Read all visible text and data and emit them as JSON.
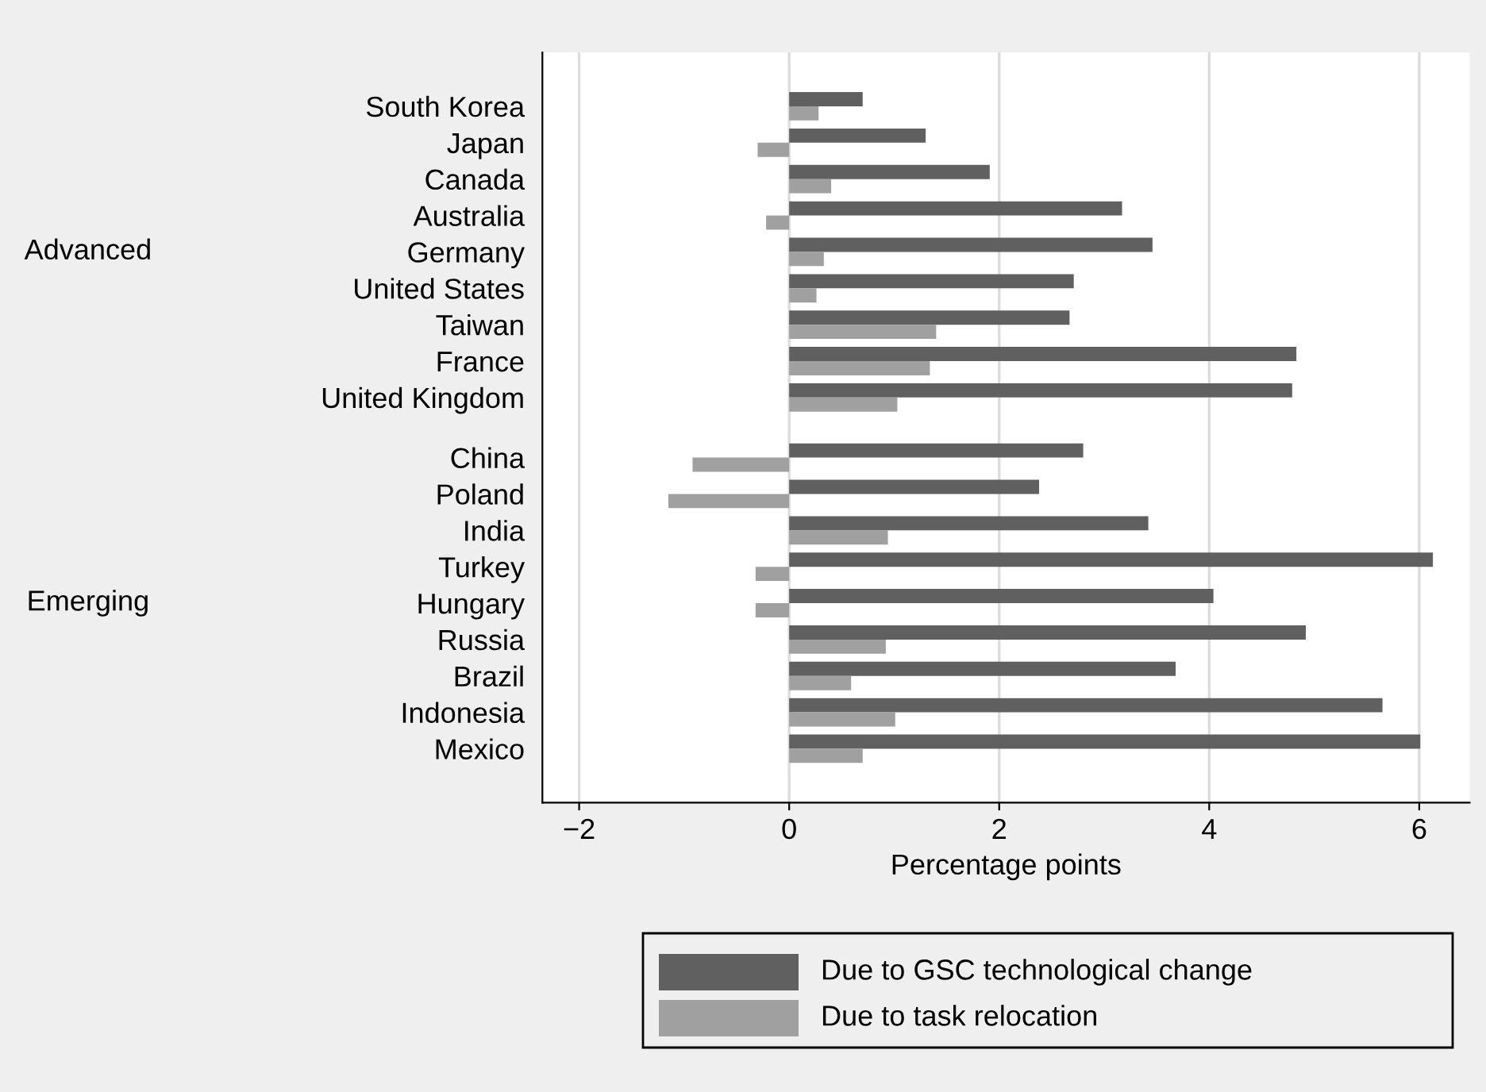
{
  "chart_data": {
    "type": "bar",
    "orientation": "horizontal",
    "xlabel": "Percentage points",
    "categories": [
      "South Korea",
      "Japan",
      "Canada",
      "Australia",
      "Germany",
      "United States",
      "Taiwan",
      "France",
      "United Kingdom",
      "China",
      "Poland",
      "India",
      "Turkey",
      "Hungary",
      "Russia",
      "Brazil",
      "Indonesia",
      "Mexico"
    ],
    "series": [
      {
        "name": "Due to GSC technological change",
        "color": "#606060",
        "values": [
          0.7,
          1.3,
          1.91,
          3.17,
          3.46,
          2.71,
          2.67,
          4.83,
          4.79,
          2.8,
          2.38,
          3.42,
          6.13,
          4.04,
          4.92,
          3.68,
          5.65,
          6.01
        ]
      },
      {
        "name": "Due to task relocation",
        "color": "#a0a0a0",
        "values": [
          0.28,
          -0.3,
          0.4,
          -0.22,
          0.33,
          0.26,
          1.4,
          1.34,
          1.03,
          -0.92,
          -1.15,
          0.94,
          -0.32,
          -0.32,
          0.92,
          0.59,
          1.01,
          0.7
        ]
      }
    ],
    "annotations": [
      "Advanced",
      "Emerging"
    ],
    "xlim": [
      -2.35,
      6.48
    ],
    "xticks": [
      {
        "value": -2,
        "label": "−2"
      },
      0,
      2,
      4,
      6
    ],
    "grid": "x",
    "legend": "bottom"
  }
}
